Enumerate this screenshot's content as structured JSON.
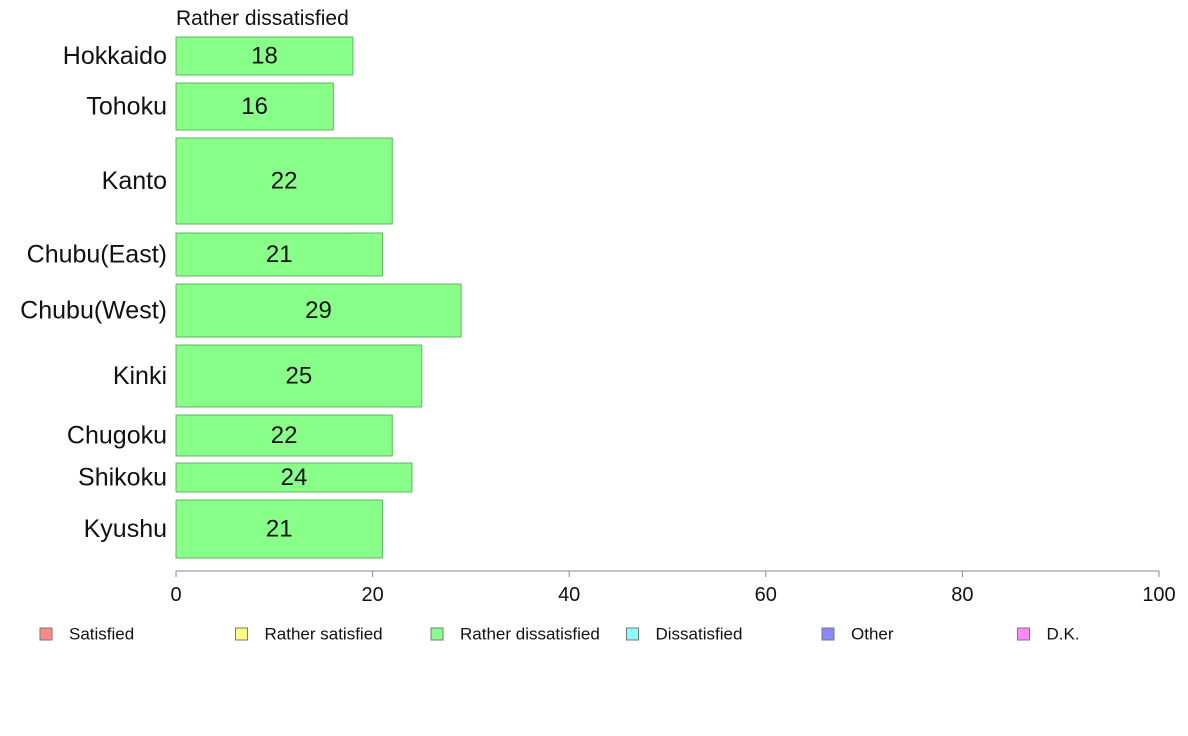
{
  "chart_data": {
    "type": "bar",
    "orientation": "horizontal",
    "subtitle": "Rather dissatisfied",
    "categories": [
      "Hokkaido",
      "Tohoku",
      "Kanto",
      "Chubu(East)",
      "Chubu(West)",
      "Kinki",
      "Chugoku",
      "Shikoku",
      "Kyushu"
    ],
    "values": [
      18,
      16,
      22,
      21,
      29,
      25,
      22,
      24,
      21
    ],
    "value_labels": [
      "18",
      "16",
      "22",
      "21",
      "29",
      "25",
      "22",
      "24",
      "21"
    ],
    "bar_color": "#88ff88",
    "bar_stroke": "#5cb85c",
    "xlim": [
      0,
      100
    ],
    "xticks": [
      0,
      20,
      40,
      60,
      80,
      100
    ],
    "grid": false,
    "legend_position": "bottom",
    "legend": [
      {
        "label": "Satisfied",
        "color": "#ff8888"
      },
      {
        "label": "Rather satisfied",
        "color": "#ffff88"
      },
      {
        "label": "Rather dissatisfied",
        "color": "#88ff88"
      },
      {
        "label": "Dissatisfied",
        "color": "#88ffff"
      },
      {
        "label": "Other",
        "color": "#8888ff"
      },
      {
        "label": "D.K.",
        "color": "#ff88ff"
      }
    ]
  }
}
